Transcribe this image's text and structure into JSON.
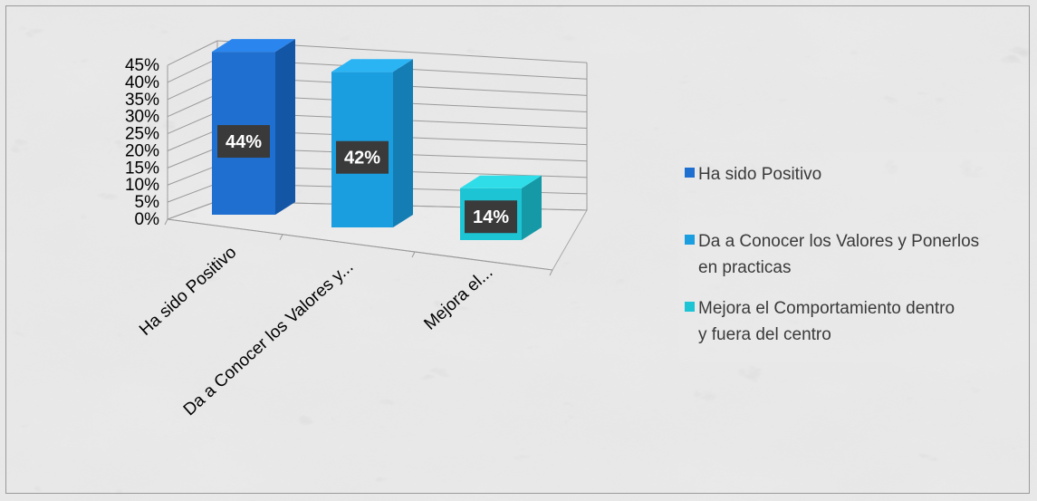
{
  "chart_data": {
    "type": "bar",
    "categories": [
      "Ha sido Positivo",
      "Da a Conocer los Valores y Ponerlos en practicas",
      "Mejora el Comportamiento dentro y fuera del centro"
    ],
    "category_tick_labels": [
      "Ha sido Positivo",
      "Da a Conocer los Valores y...",
      "Mejora el..."
    ],
    "values": [
      44,
      42,
      14
    ],
    "data_labels": [
      "44%",
      "42%",
      "14%"
    ],
    "ylim": [
      0,
      45
    ],
    "y_ticks": [
      "0%",
      "5%",
      "10%",
      "15%",
      "20%",
      "25%",
      "30%",
      "35%",
      "40%",
      "45%"
    ],
    "grid": true,
    "style": "3d-column",
    "legend": {
      "position": "right",
      "entries": [
        {
          "label_lines": [
            "Ha sido Positivo"
          ],
          "color": "#1f6fd0"
        },
        {
          "label_lines": [
            "Da a Conocer los Valores y Ponerlos",
            "en practicas"
          ],
          "color": "#1a9ee0"
        },
        {
          "label_lines": [
            "Mejora el Comportamiento dentro",
            "y fuera del centro"
          ],
          "color": "#1cc4d4"
        }
      ]
    },
    "colors": {
      "bar_front": [
        "#1f6fd0",
        "#1a9ee0",
        "#1cc4d4"
      ],
      "bar_side": [
        "#1456a6",
        "#137db4",
        "#1599a6"
      ],
      "bar_top": [
        "#2a86ee",
        "#2bb4f4",
        "#2edde8"
      ],
      "label_box": "#3a3a3a"
    }
  }
}
